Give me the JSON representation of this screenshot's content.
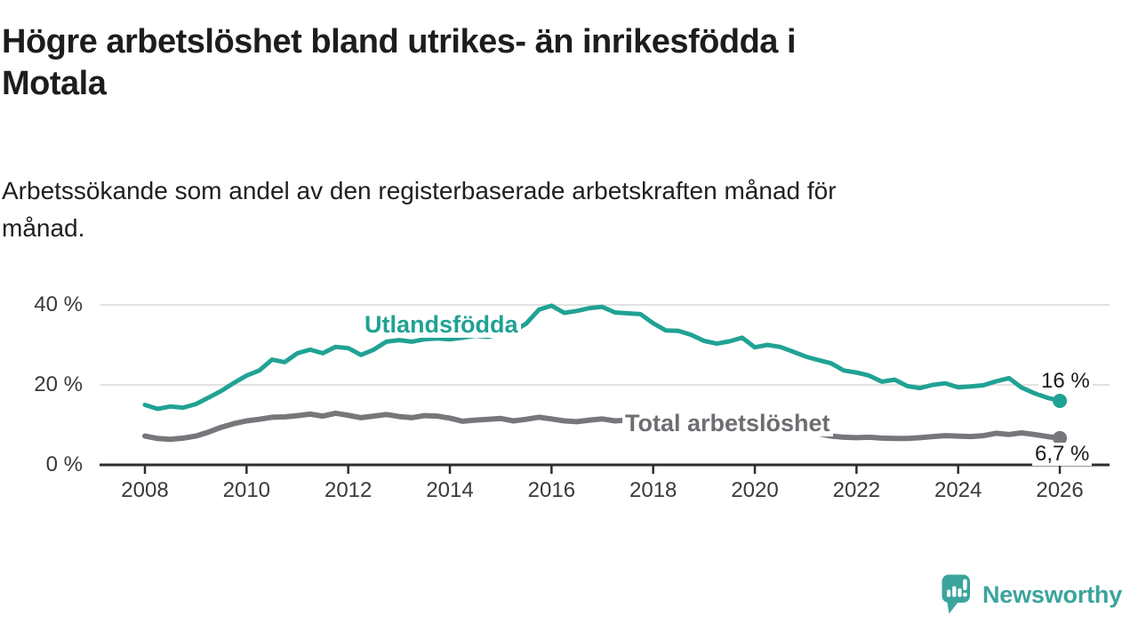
{
  "header": {
    "title": "Högre arbetslöshet bland utrikes- än inrikesfödda i Motala",
    "title_lines": [
      "Högre arbetslöshet bland utrikes- än inrikesfödda i",
      "Motala"
    ],
    "subtitle": "Arbetssökande som andel av den registerbaserade arbetskraften månad för månad.",
    "subtitle_lines": [
      "Arbetssökande som andel av den registerbaserade arbetskraften månad för",
      "månad."
    ]
  },
  "chart_data": {
    "type": "line",
    "title": "Högre arbetslöshet bland utrikes- än inrikesfödda i Motala",
    "xlabel": "",
    "ylabel": "",
    "grid": "horizontal",
    "xlim": [
      2007.1,
      2027.0
    ],
    "ylim": [
      0,
      40
    ],
    "axis_color": "#2e2e2e",
    "grid_color": "#d8d8d8",
    "y_ticks": [
      {
        "value": 0,
        "label": "0 %"
      },
      {
        "value": 20,
        "label": "20 %"
      },
      {
        "value": 40,
        "label": "40 %"
      }
    ],
    "x_ticks": [
      {
        "value": 2008,
        "label": "2008"
      },
      {
        "value": 2010,
        "label": "2010"
      },
      {
        "value": 2012,
        "label": "2012"
      },
      {
        "value": 2014,
        "label": "2014"
      },
      {
        "value": 2016,
        "label": "2016"
      },
      {
        "value": 2018,
        "label": "2018"
      },
      {
        "value": 2020,
        "label": "2020"
      },
      {
        "value": 2022,
        "label": "2022"
      },
      {
        "value": 2024,
        "label": "2024"
      },
      {
        "value": 2026,
        "label": "2026"
      }
    ],
    "series": [
      {
        "name": "Utlandsfödda",
        "color": "#20a294",
        "line_width": 5,
        "end_label": "16 %",
        "end_value": 16.0,
        "points": [
          [
            2008.0,
            15.0
          ],
          [
            2008.25,
            14.0
          ],
          [
            2008.5,
            14.6
          ],
          [
            2008.75,
            14.3
          ],
          [
            2009.0,
            15.2
          ],
          [
            2009.25,
            16.8
          ],
          [
            2009.5,
            18.5
          ],
          [
            2009.75,
            20.5
          ],
          [
            2010.0,
            22.3
          ],
          [
            2010.25,
            23.6
          ],
          [
            2010.5,
            26.3
          ],
          [
            2010.75,
            25.7
          ],
          [
            2011.0,
            27.9
          ],
          [
            2011.25,
            28.8
          ],
          [
            2011.5,
            27.9
          ],
          [
            2011.75,
            29.5
          ],
          [
            2012.0,
            29.2
          ],
          [
            2012.25,
            27.5
          ],
          [
            2012.5,
            28.8
          ],
          [
            2012.75,
            30.8
          ],
          [
            2013.0,
            31.2
          ],
          [
            2013.25,
            30.8
          ],
          [
            2013.5,
            31.4
          ],
          [
            2013.75,
            31.6
          ],
          [
            2014.0,
            31.4
          ],
          [
            2014.25,
            31.8
          ],
          [
            2014.5,
            32.3
          ],
          [
            2014.75,
            32.0
          ],
          [
            2015.0,
            32.8
          ],
          [
            2015.25,
            33.4
          ],
          [
            2015.5,
            35.3
          ],
          [
            2015.75,
            38.8
          ],
          [
            2016.0,
            39.8
          ],
          [
            2016.25,
            38.0
          ],
          [
            2016.5,
            38.5
          ],
          [
            2016.75,
            39.2
          ],
          [
            2017.0,
            39.5
          ],
          [
            2017.25,
            38.1
          ],
          [
            2017.5,
            37.9
          ],
          [
            2017.75,
            37.7
          ],
          [
            2018.0,
            35.4
          ],
          [
            2018.25,
            33.6
          ],
          [
            2018.5,
            33.5
          ],
          [
            2018.75,
            32.5
          ],
          [
            2019.0,
            31.0
          ],
          [
            2019.25,
            30.3
          ],
          [
            2019.5,
            30.9
          ],
          [
            2019.75,
            31.8
          ],
          [
            2020.0,
            29.4
          ],
          [
            2020.25,
            30.0
          ],
          [
            2020.5,
            29.5
          ],
          [
            2020.75,
            28.3
          ],
          [
            2021.0,
            27.1
          ],
          [
            2021.25,
            26.2
          ],
          [
            2021.5,
            25.4
          ],
          [
            2021.75,
            23.6
          ],
          [
            2022.0,
            23.1
          ],
          [
            2022.25,
            22.3
          ],
          [
            2022.5,
            20.8
          ],
          [
            2022.75,
            21.3
          ],
          [
            2023.0,
            19.7
          ],
          [
            2023.25,
            19.2
          ],
          [
            2023.5,
            20.0
          ],
          [
            2023.75,
            20.4
          ],
          [
            2024.0,
            19.4
          ],
          [
            2024.25,
            19.6
          ],
          [
            2024.5,
            19.9
          ],
          [
            2024.75,
            20.9
          ],
          [
            2025.0,
            21.7
          ],
          [
            2025.25,
            19.3
          ],
          [
            2025.5,
            17.9
          ],
          [
            2025.75,
            16.8
          ],
          [
            2026.0,
            16.0
          ]
        ]
      },
      {
        "name": "Total arbetslöshet",
        "color": "#77777b",
        "line_width": 6,
        "end_label": "6,7 %",
        "end_value": 6.7,
        "points": [
          [
            2008.0,
            7.2
          ],
          [
            2008.25,
            6.6
          ],
          [
            2008.5,
            6.4
          ],
          [
            2008.75,
            6.7
          ],
          [
            2009.0,
            7.2
          ],
          [
            2009.25,
            8.2
          ],
          [
            2009.5,
            9.4
          ],
          [
            2009.75,
            10.3
          ],
          [
            2010.0,
            11.0
          ],
          [
            2010.25,
            11.4
          ],
          [
            2010.5,
            11.9
          ],
          [
            2010.75,
            12.0
          ],
          [
            2011.0,
            12.3
          ],
          [
            2011.25,
            12.7
          ],
          [
            2011.5,
            12.2
          ],
          [
            2011.75,
            12.9
          ],
          [
            2012.0,
            12.4
          ],
          [
            2012.25,
            11.8
          ],
          [
            2012.5,
            12.2
          ],
          [
            2012.75,
            12.6
          ],
          [
            2013.0,
            12.1
          ],
          [
            2013.25,
            11.8
          ],
          [
            2013.5,
            12.3
          ],
          [
            2013.75,
            12.2
          ],
          [
            2014.0,
            11.7
          ],
          [
            2014.25,
            10.9
          ],
          [
            2014.5,
            11.2
          ],
          [
            2014.75,
            11.4
          ],
          [
            2015.0,
            11.6
          ],
          [
            2015.25,
            11.0
          ],
          [
            2015.5,
            11.4
          ],
          [
            2015.75,
            11.9
          ],
          [
            2016.0,
            11.5
          ],
          [
            2016.25,
            11.0
          ],
          [
            2016.5,
            10.8
          ],
          [
            2016.75,
            11.2
          ],
          [
            2017.0,
            11.5
          ],
          [
            2017.25,
            11.0
          ],
          [
            2017.5,
            11.2
          ],
          [
            2017.75,
            10.9
          ],
          [
            2018.0,
            10.5
          ],
          [
            2018.25,
            10.1
          ],
          [
            2018.5,
            10.4
          ],
          [
            2018.75,
            10.2
          ],
          [
            2019.0,
            9.8
          ],
          [
            2019.25,
            9.6
          ],
          [
            2019.5,
            9.9
          ],
          [
            2019.75,
            10.1
          ],
          [
            2020.0,
            9.7
          ],
          [
            2020.25,
            10.4
          ],
          [
            2020.5,
            10.0
          ],
          [
            2020.75,
            9.4
          ],
          [
            2021.0,
            8.6
          ],
          [
            2021.25,
            7.8
          ],
          [
            2021.5,
            7.2
          ],
          [
            2021.75,
            6.9
          ],
          [
            2022.0,
            6.8
          ],
          [
            2022.25,
            6.9
          ],
          [
            2022.5,
            6.7
          ],
          [
            2022.75,
            6.6
          ],
          [
            2023.0,
            6.6
          ],
          [
            2023.25,
            6.8
          ],
          [
            2023.5,
            7.1
          ],
          [
            2023.75,
            7.3
          ],
          [
            2024.0,
            7.2
          ],
          [
            2024.25,
            7.1
          ],
          [
            2024.5,
            7.3
          ],
          [
            2024.75,
            7.9
          ],
          [
            2025.0,
            7.6
          ],
          [
            2025.25,
            8.0
          ],
          [
            2025.5,
            7.6
          ],
          [
            2025.75,
            7.1
          ],
          [
            2026.0,
            6.7
          ]
        ]
      }
    ]
  },
  "branding": {
    "logo_text": "Newsworthy",
    "logo_color": "#3ba49c",
    "logo_icon": "speech-bubble-bar-chart-icon"
  }
}
